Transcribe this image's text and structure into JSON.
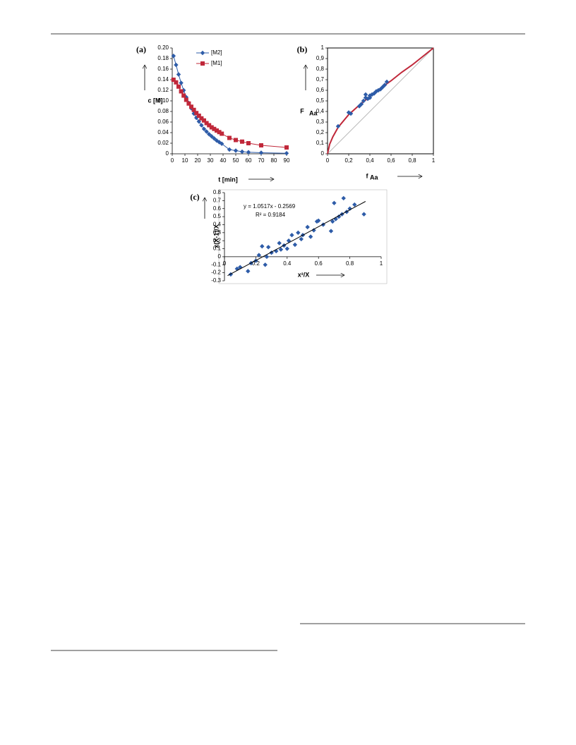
{
  "chart_data": [
    {
      "type": "line",
      "panel": "(a)",
      "ylabel": "c [M]",
      "xlabel": "t [min]",
      "xlim": [
        0,
        90
      ],
      "xticks": [
        0,
        10,
        20,
        30,
        40,
        50,
        60,
        70,
        80,
        90
      ],
      "ylim": [
        0,
        0.2
      ],
      "yticks": [
        0,
        0.02,
        0.04,
        0.06,
        0.08,
        {
          "value": 0.1,
          "label": "0.10"
        },
        0.12,
        0.14,
        0.16,
        0.18,
        {
          "value": 0.2,
          "label": "0.20"
        }
      ],
      "x": [
        1,
        3,
        5,
        7,
        9,
        11,
        13,
        15,
        17,
        19,
        21,
        23,
        25,
        27,
        29,
        31,
        33,
        35,
        37,
        39,
        45,
        50,
        55,
        60,
        70,
        90
      ],
      "series": [
        {
          "name": "[M2]",
          "color": "#2e5ca8",
          "marker": "diamond",
          "values": [
            0.185,
            0.168,
            0.15,
            0.134,
            0.12,
            0.107,
            0.096,
            0.086,
            0.076,
            0.068,
            0.061,
            0.054,
            0.047,
            0.042,
            0.037,
            0.033,
            0.029,
            0.025,
            0.022,
            0.019,
            0.008,
            0.006,
            0.004,
            0.003,
            0.002,
            0.001
          ]
        },
        {
          "name": "[M1]",
          "color": "#c0283a",
          "marker": "square",
          "values": [
            0.14,
            0.135,
            0.127,
            0.118,
            0.11,
            0.102,
            0.095,
            0.089,
            0.083,
            0.077,
            0.072,
            0.067,
            0.063,
            0.058,
            0.054,
            0.05,
            0.047,
            0.044,
            0.041,
            0.038,
            0.03,
            0.026,
            0.023,
            0.02,
            0.016,
            0.012
          ]
        }
      ]
    },
    {
      "type": "scatter",
      "panel": "(b)",
      "ylabel": "F",
      "ylabel_sub": "Aa",
      "xlabel": "f",
      "xlabel_sub": "Aa",
      "xlim": [
        0,
        1
      ],
      "xticks": [
        0,
        {
          "value": 0.2,
          "label": "0,2"
        },
        {
          "value": 0.4,
          "label": "0,4"
        },
        {
          "value": 0.6,
          "label": "0,6"
        },
        {
          "value": 0.8,
          "label": "0,8"
        },
        1
      ],
      "ylim": [
        0,
        1
      ],
      "yticks": [
        0,
        {
          "value": 0.1,
          "label": "0,1"
        },
        {
          "value": 0.2,
          "label": "0,2"
        },
        {
          "value": 0.3,
          "label": "0,3"
        },
        {
          "value": 0.4,
          "label": "0,4"
        },
        {
          "value": 0.5,
          "label": "0,5"
        },
        {
          "value": 0.6,
          "label": "0,6"
        },
        {
          "value": 0.7,
          "label": "0,7"
        },
        {
          "value": 0.8,
          "label": "0,8"
        },
        {
          "value": 0.9,
          "label": "0,9"
        },
        1
      ],
      "series": [
        {
          "color": "#bbbbbb",
          "marker": "none",
          "line": true,
          "x": [
            0,
            1
          ],
          "values": [
            0,
            1
          ]
        },
        {
          "color": "#c0283a",
          "marker": "none",
          "line": true,
          "x": [
            0,
            0.02,
            0.05,
            0.1,
            0.2,
            0.3,
            0.4,
            0.5,
            0.6,
            0.7,
            0.8,
            0.9,
            1
          ],
          "values": [
            0,
            0.09,
            0.16,
            0.25,
            0.37,
            0.46,
            0.54,
            0.62,
            0.69,
            0.77,
            0.84,
            0.92,
            1
          ]
        },
        {
          "color": "#2e5ca8",
          "marker": "diamond",
          "line": false,
          "x": [
            0.1,
            0.2,
            0.22,
            0.3,
            0.32,
            0.34,
            0.36,
            0.38,
            0.4,
            0.42,
            0.44,
            0.46,
            0.48,
            0.5,
            0.52,
            0.54,
            0.56,
            0.36,
            0.4
          ],
          "values": [
            0.26,
            0.39,
            0.38,
            0.45,
            0.47,
            0.5,
            0.53,
            0.52,
            0.55,
            0.56,
            0.57,
            0.59,
            0.6,
            0.61,
            0.63,
            0.65,
            0.68,
            0.56,
            0.53
          ]
        }
      ]
    },
    {
      "type": "scatter",
      "panel": "(c)",
      "ylabel": "x(X-1)/X",
      "xlabel": "x²/X",
      "equation": "y = 1.0517x - 0.2569",
      "r2": "R² = 0.9184",
      "xlim": [
        0,
        1
      ],
      "xticks": [
        0,
        0.2,
        0.4,
        0.6,
        0.8,
        1
      ],
      "ylim": [
        -0.3,
        0.8
      ],
      "yticks": [
        -0.3,
        -0.2,
        -0.1,
        0,
        0.1,
        0.2,
        0.3,
        0.4,
        0.5,
        0.6,
        0.7,
        0.8
      ],
      "series": [
        {
          "color": "#2e5ca8",
          "marker": "diamond",
          "line": false,
          "x": [
            0.04,
            0.08,
            0.1,
            0.15,
            0.17,
            0.2,
            0.22,
            0.24,
            0.26,
            0.27,
            0.28,
            0.3,
            0.33,
            0.35,
            0.36,
            0.38,
            0.4,
            0.41,
            0.43,
            0.45,
            0.47,
            0.49,
            0.5,
            0.53,
            0.55,
            0.57,
            0.59,
            0.6,
            0.63,
            0.68,
            0.69,
            0.7,
            0.71,
            0.73,
            0.75,
            0.76,
            0.78,
            0.8,
            0.83,
            0.89
          ],
          "values": [
            -0.22,
            -0.15,
            -0.13,
            -0.18,
            -0.08,
            -0.05,
            0.02,
            0.13,
            -0.1,
            0.0,
            0.12,
            0.05,
            0.07,
            0.17,
            0.09,
            0.14,
            0.1,
            0.2,
            0.27,
            0.15,
            0.3,
            0.22,
            0.27,
            0.37,
            0.25,
            0.33,
            0.44,
            0.45,
            0.4,
            0.32,
            0.44,
            0.67,
            0.47,
            0.5,
            0.53,
            0.73,
            0.56,
            0.6,
            0.65,
            0.53
          ]
        },
        {
          "color": "#000000",
          "marker": "none",
          "line": true,
          "x": [
            0.02,
            0.9
          ],
          "values": [
            -0.236,
            0.69
          ]
        }
      ]
    }
  ]
}
